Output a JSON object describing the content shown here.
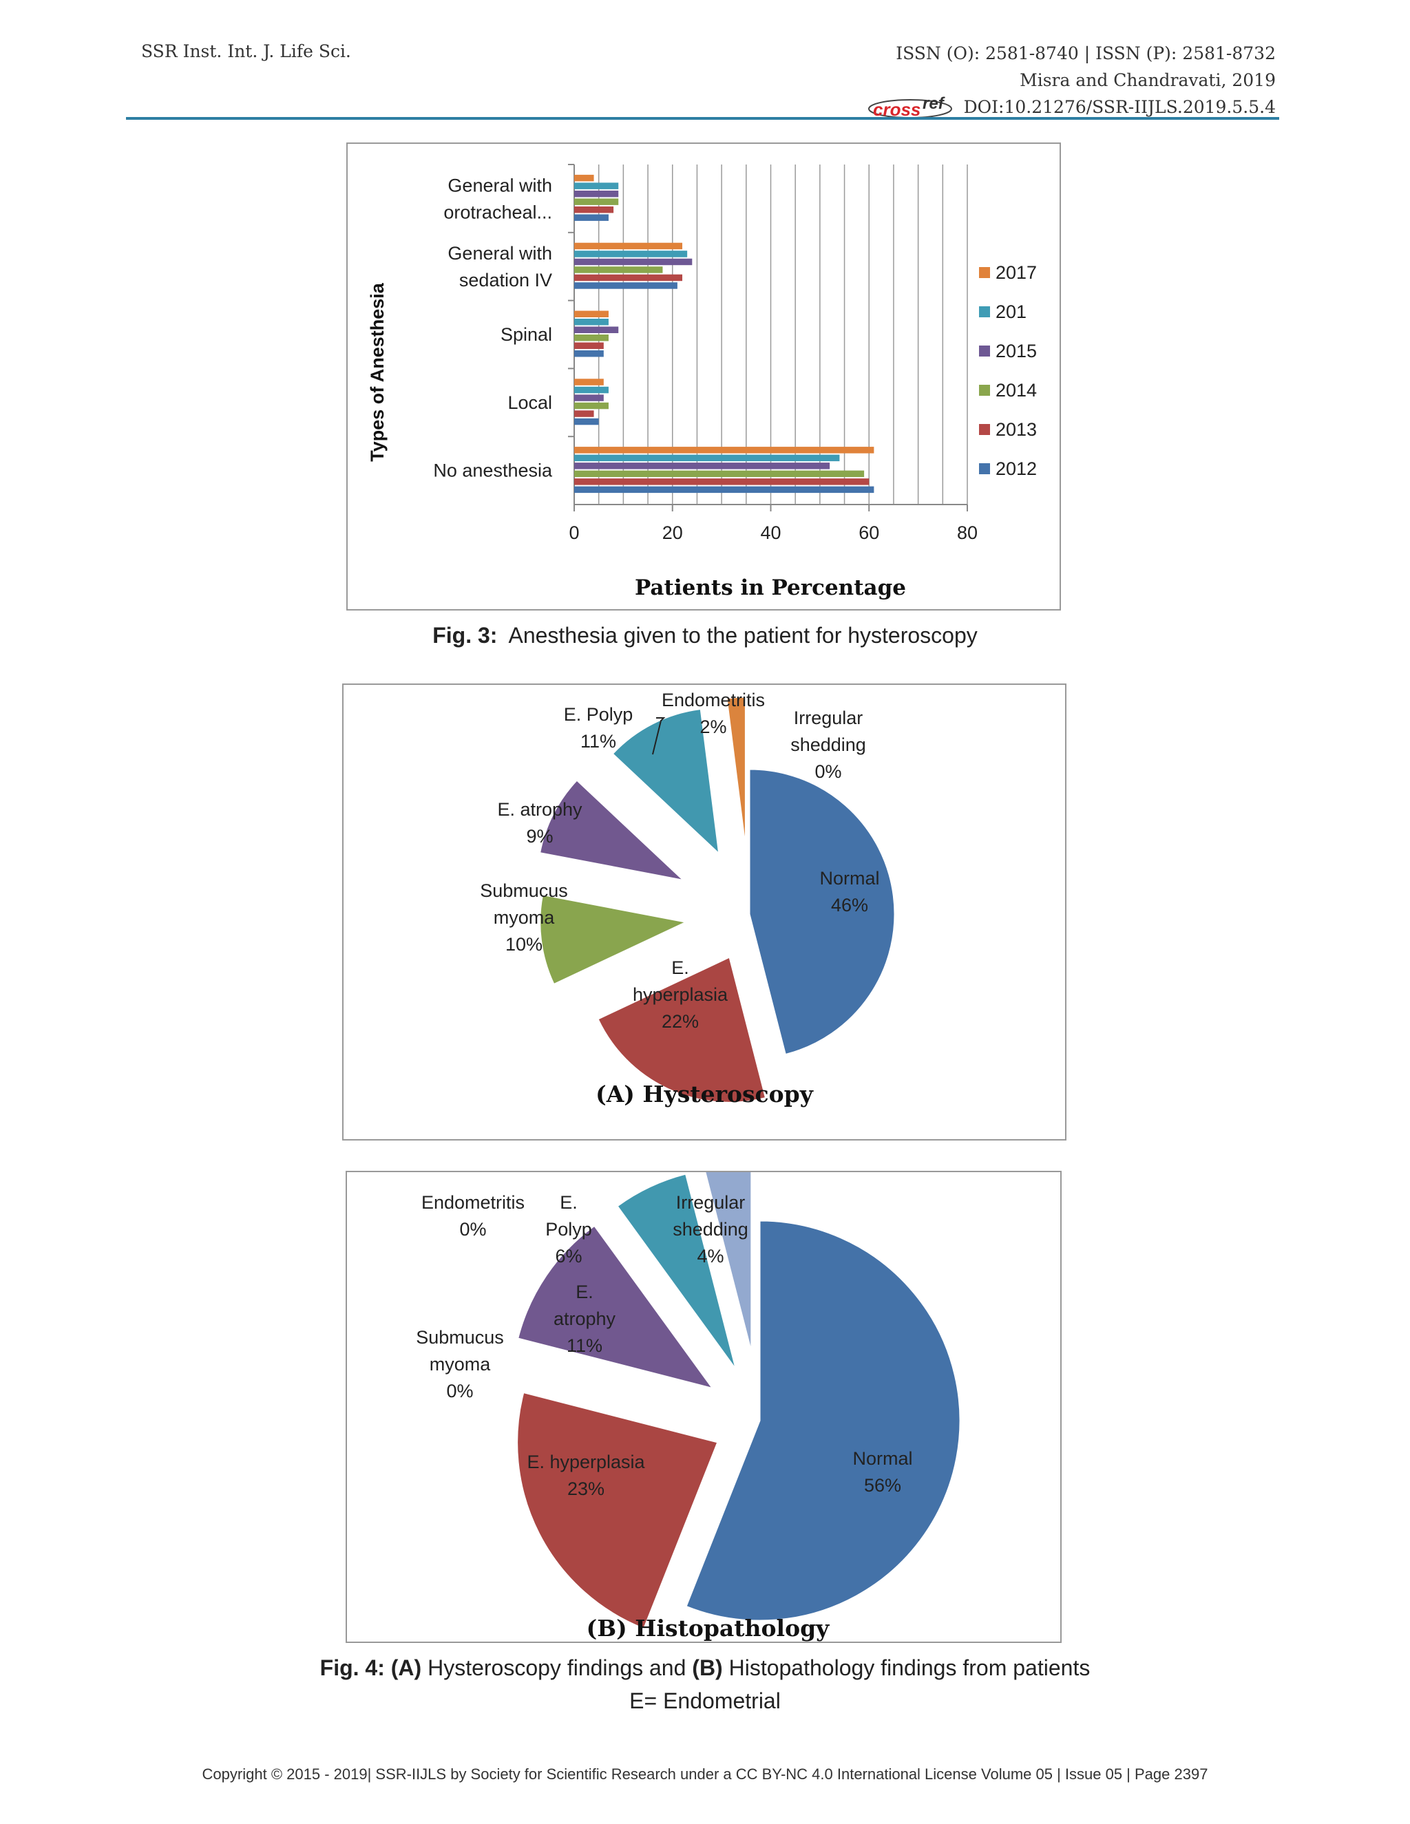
{
  "header": {
    "journal": "SSR Inst. Int. J. Life Sci.",
    "issn": "ISSN (O): 2581-8740 | ISSN (P): 2581-8732",
    "authors": "Misra and Chandravati, 2019",
    "crossref_logo": "crossref",
    "doi": "DOI:10.21276/SSR-IIJLS.2019.5.5.4"
  },
  "fig3": {
    "caption_label": "Fig. 3:",
    "caption_text": "Anesthesia given to the patient for hysteroscopy"
  },
  "fig4": {
    "caption_label_fig": "Fig. 4:",
    "caption_label_a": "(A)",
    "caption_text_a": "Hysteroscopy findings and",
    "caption_label_b": "(B)",
    "caption_text_b": "Histopathology findings from patients",
    "caption_line2": "E= Endometrial"
  },
  "footer": {
    "text": "Copyright © 2015 - 2019| SSR-IIJLS by Society for Scientific Research under a CC BY-NC 4.0 International License    Volume 05 |   Issue 05 |   Page 2397"
  },
  "chart_data": [
    {
      "type": "bar",
      "orientation": "horizontal",
      "categories": [
        [
          "General with",
          "orotracheal..."
        ],
        [
          "General with",
          "sedation IV"
        ],
        [
          "Spinal"
        ],
        [
          "Local"
        ],
        [
          "No anesthesia"
        ]
      ],
      "series": [
        {
          "name": "2017",
          "color": "#e0823a",
          "values": [
            4,
            22,
            7,
            6,
            61
          ]
        },
        {
          "name": "201",
          "color": "#3f9cb5",
          "values": [
            9,
            23,
            7,
            7,
            54
          ]
        },
        {
          "name": "2015",
          "color": "#6e5894",
          "values": [
            9,
            24,
            9,
            6,
            52
          ]
        },
        {
          "name": "2014",
          "color": "#8aa64d",
          "values": [
            9,
            18,
            7,
            7,
            59
          ]
        },
        {
          "name": "2013",
          "color": "#b44846",
          "values": [
            8,
            22,
            6,
            4,
            60
          ]
        },
        {
          "name": "2012",
          "color": "#4473ab",
          "values": [
            7,
            21,
            6,
            5,
            61
          ]
        }
      ],
      "xlim": [
        0,
        80
      ],
      "xticks": [
        0,
        20,
        40,
        60,
        80
      ],
      "xlabel": "Patients in Percentage",
      "ylabel": "Types of Anesthesia",
      "grid": "vertical",
      "legend": "right"
    },
    {
      "type": "pie",
      "title": "(A) Hysteroscopy",
      "slices": [
        {
          "name": "Normal",
          "value": 46,
          "label_lines": [
            "Normal",
            "46%"
          ],
          "color": "#4472a8"
        },
        {
          "name": "E. hyperplasia",
          "value": 22,
          "label_lines": [
            "E.",
            "hyperplasia",
            "22%"
          ],
          "color": "#aa4643"
        },
        {
          "name": "Submucus myoma",
          "value": 10,
          "label_lines": [
            "Submucus",
            "myoma",
            "10%"
          ],
          "color": "#89a54e"
        },
        {
          "name": "E. atrophy",
          "value": 9,
          "label_lines": [
            "E. atrophy",
            "9%"
          ],
          "color": "#71588f"
        },
        {
          "name": "E. Polyp",
          "value": 11,
          "label_lines": [
            "E. Polyp",
            "11%"
          ],
          "color": "#4198af"
        },
        {
          "name": "Endometritis",
          "value": 2,
          "label_lines": [
            "Endometritis",
            "2%"
          ],
          "color": "#db843d"
        },
        {
          "name": "Irregular shedding",
          "value": 0,
          "label_lines": [
            "Irregular",
            "shedding",
            "0%"
          ],
          "color": "#93a9cf"
        }
      ]
    },
    {
      "type": "pie",
      "title": "(B) Histopathology",
      "slices": [
        {
          "name": "Normal",
          "value": 56,
          "label_lines": [
            "Normal",
            "56%"
          ],
          "color": "#4472a8"
        },
        {
          "name": "E. hyperplasia",
          "value": 23,
          "label_lines": [
            "E. hyperplasia",
            "23%"
          ],
          "color": "#aa4643"
        },
        {
          "name": "Submucus myoma",
          "value": 0,
          "label_lines": [
            "Submucus",
            "myoma",
            "0%"
          ],
          "color": "#89a54e"
        },
        {
          "name": "E. atrophy",
          "value": 11,
          "label_lines": [
            "E.",
            "atrophy",
            "11%"
          ],
          "color": "#71588f"
        },
        {
          "name": "E. Polyp",
          "value": 6,
          "label_lines": [
            "E.",
            "Polyp",
            "6%"
          ],
          "color": "#4198af"
        },
        {
          "name": "Endometritis",
          "value": 0,
          "label_lines": [
            "Endometritis",
            "0%"
          ],
          "color": "#db843d"
        },
        {
          "name": "Irregular shedding",
          "value": 4,
          "label_lines": [
            "Irregular",
            "shedding",
            "4%"
          ],
          "color": "#93a9cf"
        }
      ]
    }
  ]
}
